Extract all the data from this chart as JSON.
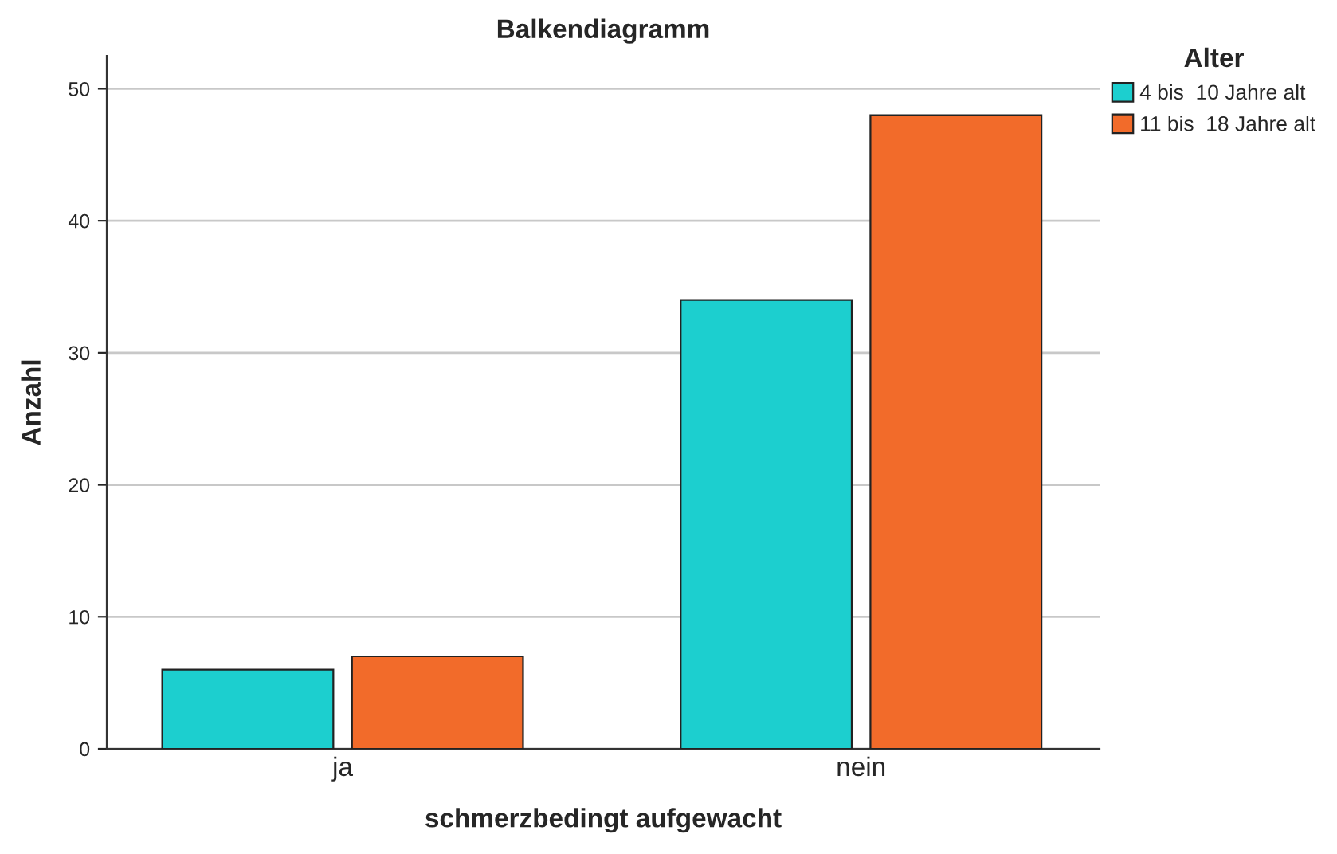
{
  "chart_data": {
    "type": "bar",
    "title": "Balkendiagramm",
    "xlabel": "schmerzbedingt aufgewacht",
    "ylabel": "Anzahl",
    "legend_title": "Alter",
    "categories": [
      "ja",
      "nein"
    ],
    "series": [
      {
        "name": "4 bis  10 Jahre alt",
        "color": "#1ccfcf",
        "values": [
          6,
          34
        ]
      },
      {
        "name": "11 bis  18 Jahre alt",
        "color": "#f26b2a",
        "values": [
          7,
          48
        ]
      }
    ],
    "ylim": [
      0,
      52.5
    ],
    "yticks": [
      0,
      10,
      20,
      30,
      40,
      50
    ],
    "grid": "y",
    "legend": "top right"
  }
}
